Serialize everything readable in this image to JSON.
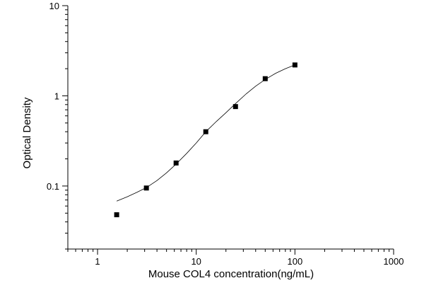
{
  "chart_data": {
    "type": "scatter",
    "title": "",
    "xlabel": "Mouse COL4 concentration(ng/mL)",
    "ylabel": "Optical Density",
    "xscale": "log",
    "yscale": "log",
    "xlim": [
      0.5,
      1000
    ],
    "ylim": [
      0.02,
      10
    ],
    "x_tick_labels": [
      "1",
      "10",
      "100",
      "1000"
    ],
    "y_tick_labels": [
      "0.1",
      "1",
      "10"
    ],
    "grid": false,
    "legend": "none",
    "colors": {
      "axis": "#000000",
      "points": "#000000",
      "curve": "#000000"
    },
    "series": [
      {
        "marker": "square",
        "x": [
          1.5625,
          3.125,
          6.25,
          12.5,
          25,
          50,
          100
        ],
        "y": [
          0.048,
          0.095,
          0.18,
          0.4,
          0.76,
          1.55,
          2.2
        ]
      }
    ],
    "fit_curve": {
      "style": "thin line",
      "x": [
        1.5625,
        2,
        2.5,
        3.125,
        4,
        5,
        6.25,
        8,
        10,
        12.5,
        16,
        20,
        25,
        32,
        40,
        50,
        64,
        80,
        100
      ],
      "y": [
        0.068,
        0.076,
        0.085,
        0.096,
        0.115,
        0.14,
        0.175,
        0.23,
        0.3,
        0.4,
        0.52,
        0.65,
        0.82,
        1.05,
        1.28,
        1.52,
        1.78,
        2.0,
        2.2
      ]
    }
  }
}
